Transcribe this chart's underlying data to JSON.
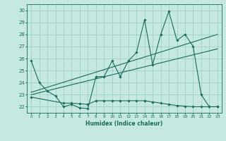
{
  "xlabel": "Humidex (Indice chaleur)",
  "xlim": [
    -0.5,
    23.5
  ],
  "ylim": [
    21.5,
    30.5
  ],
  "yticks": [
    22,
    23,
    24,
    25,
    26,
    27,
    28,
    29,
    30
  ],
  "xticks": [
    0,
    1,
    2,
    3,
    4,
    5,
    6,
    7,
    8,
    9,
    10,
    11,
    12,
    13,
    14,
    15,
    16,
    17,
    18,
    19,
    20,
    21,
    22,
    23
  ],
  "bg_color": "#c5e8e2",
  "grid_color": "#99ccc4",
  "line_color": "#1a6b5a",
  "line1_x": [
    0,
    1,
    2,
    3,
    4,
    5,
    6,
    7,
    8,
    9,
    10,
    11,
    12,
    13,
    14,
    15,
    16,
    17,
    18,
    19,
    20,
    21,
    22,
    23
  ],
  "line1_y": [
    25.8,
    24.0,
    23.3,
    22.9,
    22.0,
    22.2,
    21.9,
    21.85,
    24.5,
    24.5,
    25.8,
    24.5,
    25.8,
    26.5,
    29.2,
    25.5,
    28.0,
    29.9,
    27.5,
    28.0,
    27.0,
    23.0,
    22.0,
    22.0
  ],
  "line2_x": [
    0,
    23
  ],
  "line2_y": [
    23.2,
    28.0
  ],
  "line3_x": [
    0,
    23
  ],
  "line3_y": [
    23.0,
    26.8
  ],
  "line4_x": [
    0,
    4,
    5,
    6,
    7,
    8,
    9,
    10,
    11,
    12,
    13,
    14,
    15,
    16,
    17,
    18,
    19,
    20,
    21,
    22,
    23
  ],
  "line4_y": [
    22.8,
    22.3,
    22.3,
    22.25,
    22.2,
    22.5,
    22.5,
    22.5,
    22.5,
    22.5,
    22.5,
    22.5,
    22.4,
    22.3,
    22.2,
    22.1,
    22.05,
    22.0,
    22.0,
    22.0,
    22.0
  ]
}
